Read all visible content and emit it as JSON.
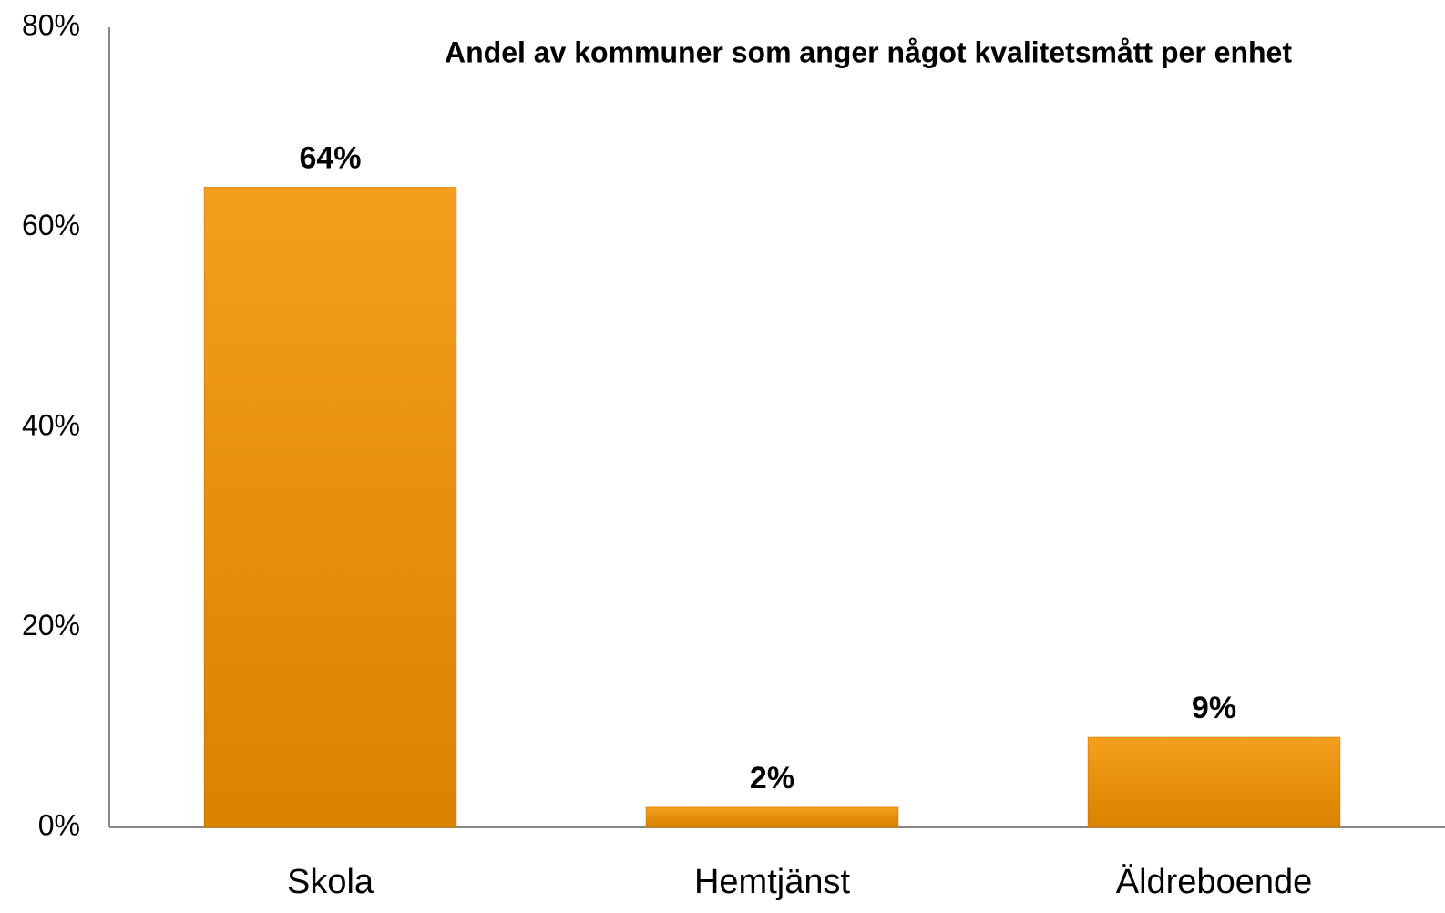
{
  "chart_data": {
    "type": "bar",
    "title": "Andel av kommuner som anger något kvalitetsmått per enhet",
    "categories": [
      "Skola",
      "Hemtjänst",
      "Äldreboende"
    ],
    "values": [
      64,
      2,
      9
    ],
    "value_labels": [
      "64%",
      "2%",
      "9%"
    ],
    "color": "#f39200",
    "ylim": [
      0,
      80
    ],
    "yticks": [
      {
        "value": 0,
        "label": "0%"
      },
      {
        "value": 20,
        "label": "20%"
      },
      {
        "value": 40,
        "label": "40%"
      },
      {
        "value": 60,
        "label": "60%"
      },
      {
        "value": 80,
        "label": "80%"
      }
    ],
    "grid": false
  }
}
